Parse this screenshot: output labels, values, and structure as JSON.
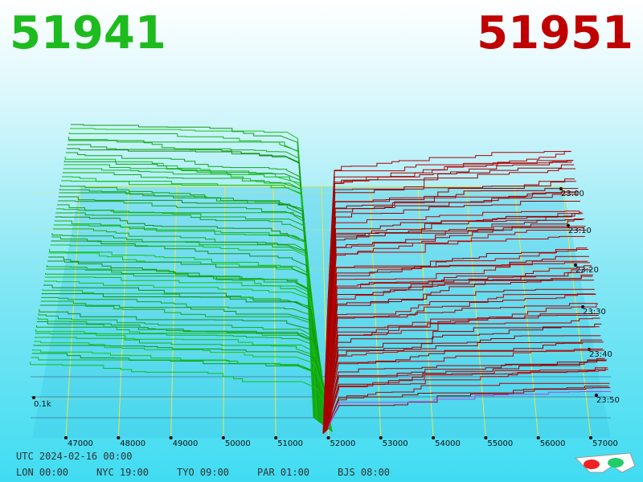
{
  "header": {
    "bid": "51941",
    "ask": "51951"
  },
  "x_axis": {
    "labels": [
      "47000",
      "48000",
      "49000",
      "50000",
      "51000",
      "52000",
      "53000",
      "54000",
      "55000",
      "56000",
      "57000"
    ]
  },
  "time_axis": {
    "labels": [
      "23:00",
      "23:10",
      "23:20",
      "23:30",
      "23:40",
      "23:50"
    ]
  },
  "depth_label": "0.1k",
  "footer": {
    "utc": "UTC 2024-02-16 00:00",
    "clocks": [
      "LON 00:00",
      "NYC 19:00",
      "TYO 09:00",
      "PAR 01:00",
      "BJS 08:00"
    ]
  }
}
